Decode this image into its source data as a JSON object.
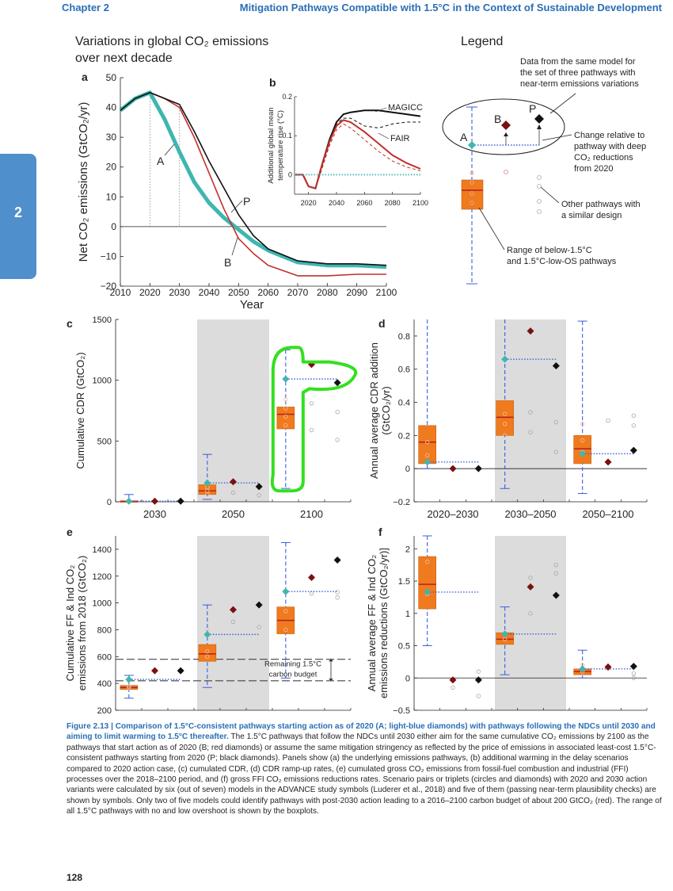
{
  "header": {
    "chapter": "Chapter 2",
    "title": "Mitigation Pathways Compatible with 1.5°C in the Context of Sustainable Development"
  },
  "side_tab": "2",
  "page_number": "128",
  "legend": {
    "title": "Legend",
    "note_same_model": [
      "Data from the same model for",
      "the set of three pathways with",
      "near-term emissions variations"
    ],
    "note_change": [
      "Change relative to",
      "pathway with deep",
      "CO₂ reductions",
      "from 2020"
    ],
    "note_other": [
      "Other pathways with",
      "a similar design"
    ],
    "note_range": [
      "Range of below-1.5°C",
      "and 1.5°C-low-OS pathways"
    ],
    "labels": {
      "A": "A",
      "B": "B",
      "P": "P"
    }
  },
  "chart_data": [
    {
      "id": "a",
      "panel_label": "a",
      "type": "line",
      "title": "Variations in global CO₂ emissions over next decade",
      "title_lines": [
        "Variations in global CO₂ emissions",
        "over next decade"
      ],
      "xlabel": "Year",
      "ylabel": "Net CO₂ emissions (GtCO₂/yr)",
      "xlim": [
        2010,
        2100
      ],
      "ylim": [
        -20,
        50
      ],
      "xticks": [
        2010,
        2020,
        2030,
        2040,
        2050,
        2060,
        2070,
        2080,
        2090,
        2100
      ],
      "yticks": [
        -20,
        -10,
        0,
        10,
        20,
        30,
        40,
        50
      ],
      "series": [
        {
          "name": "A",
          "color": "#3fb6b0",
          "x": [
            2010,
            2015,
            2020,
            2025,
            2030,
            2035,
            2040,
            2045,
            2050,
            2055,
            2060,
            2070,
            2080,
            2090,
            2100
          ],
          "y": [
            39,
            43,
            45,
            36,
            25,
            15,
            8,
            3,
            -1,
            -5,
            -8,
            -12,
            -13,
            -13,
            -13.5
          ]
        },
        {
          "name": "B",
          "color": "#c0302c",
          "x": [
            2010,
            2015,
            2020,
            2025,
            2030,
            2035,
            2040,
            2045,
            2050,
            2055,
            2060,
            2070,
            2080,
            2090,
            2100
          ],
          "y": [
            39,
            43,
            45,
            43,
            40,
            30,
            18,
            6,
            -4,
            -9,
            -13,
            -16.5,
            -16.5,
            -16,
            -16
          ]
        },
        {
          "name": "P",
          "color": "#111111",
          "x": [
            2010,
            2015,
            2020,
            2025,
            2030,
            2035,
            2040,
            2045,
            2050,
            2055,
            2060,
            2070,
            2080,
            2090,
            2100
          ],
          "y": [
            39,
            43,
            45,
            43,
            41,
            32,
            22,
            13,
            4,
            -3,
            -7.5,
            -11.5,
            -12.5,
            -12.5,
            -13
          ]
        }
      ],
      "labels": {
        "A": "A",
        "B": "B",
        "P": "P"
      }
    },
    {
      "id": "b",
      "panel_label": "b",
      "type": "line",
      "ylabel": [
        "Additional global mean",
        "temperature rise (°C)"
      ],
      "xlim": [
        2010,
        2100
      ],
      "ylim": [
        -0.05,
        0.2
      ],
      "xticks": [
        2020,
        2040,
        2060,
        2080,
        2100
      ],
      "yticks": [
        0,
        0.1,
        0.2
      ],
      "series": [
        {
          "name": "MAGICC",
          "color": "#111111",
          "dash": false,
          "x": [
            2010,
            2016,
            2020,
            2025,
            2030,
            2035,
            2040,
            2045,
            2050,
            2060,
            2070,
            2080,
            2090,
            2100
          ],
          "y": [
            0,
            0,
            -0.03,
            -0.035,
            0.03,
            0.09,
            0.135,
            0.155,
            0.16,
            0.165,
            0.165,
            0.16,
            0.155,
            0.15
          ]
        },
        {
          "name": "",
          "color": "#111111",
          "dash": true,
          "x": [
            2010,
            2016,
            2020,
            2025,
            2030,
            2035,
            2040,
            2045,
            2050,
            2060,
            2070,
            2080,
            2090,
            2100
          ],
          "y": [
            0,
            0,
            -0.03,
            -0.035,
            0.02,
            0.08,
            0.13,
            0.145,
            0.145,
            0.125,
            0.12,
            0.13,
            0.135,
            0.135
          ]
        },
        {
          "name": "FAIR",
          "color": "#c0302c",
          "dash": false,
          "x": [
            2010,
            2016,
            2020,
            2025,
            2030,
            2035,
            2040,
            2045,
            2050,
            2060,
            2070,
            2080,
            2090,
            2100
          ],
          "y": [
            0,
            0,
            -0.03,
            -0.035,
            0.03,
            0.085,
            0.125,
            0.14,
            0.135,
            0.11,
            0.08,
            0.05,
            0.03,
            0.015
          ]
        },
        {
          "name": "",
          "color": "#c0302c",
          "dash": true,
          "x": [
            2010,
            2016,
            2020,
            2025,
            2030,
            2035,
            2040,
            2045,
            2050,
            2060,
            2070,
            2080,
            2090,
            2100
          ],
          "y": [
            0,
            0,
            -0.03,
            -0.035,
            0.02,
            0.075,
            0.115,
            0.13,
            0.12,
            0.09,
            0.06,
            0.035,
            0.02,
            0.01
          ]
        },
        {
          "name": "",
          "color": "#3fb6b0",
          "dotted": true,
          "x": [
            2010,
            2100
          ],
          "y": [
            0,
            0
          ]
        }
      ],
      "labels": {
        "magicc": "MAGICC",
        "fair": "FAIR"
      }
    },
    {
      "id": "c",
      "panel_label": "c",
      "type": "box",
      "ylabel": "Cumulative CDR (GtCO₂)",
      "ylim": [
        0,
        1500
      ],
      "yticks": [
        0,
        500,
        1000,
        1500
      ],
      "groups": [
        {
          "label": "2030",
          "shaded": false,
          "box": {
            "q1": 2,
            "median": 5,
            "q3": 8
          },
          "whisker": [
            0,
            60
          ],
          "A": 5,
          "B": 5,
          "P": 5,
          "circles": [
            3,
            5,
            8
          ]
        },
        {
          "label": "2050",
          "shaded": true,
          "box": {
            "q1": 60,
            "median": 90,
            "q3": 140
          },
          "whisker": [
            20,
            390
          ],
          "A": 155,
          "B": 165,
          "P": 125,
          "circles": [
            60,
            90,
            120
          ],
          "grey": [
            55,
            75
          ]
        },
        {
          "label": "2100",
          "shaded": false,
          "box": {
            "q1": 600,
            "median": 720,
            "q3": 780
          },
          "whisker": [
            110,
            1250
          ],
          "A": 1010,
          "B": 1130,
          "P": 980,
          "circles": [
            630,
            700,
            770,
            840
          ],
          "grey": [
            510,
            590,
            740,
            810
          ],
          "highlight": true
        }
      ]
    },
    {
      "id": "d",
      "panel_label": "d",
      "type": "box",
      "ylabel": [
        "Annual average CDR addition",
        "(GtCO₂/yr)"
      ],
      "ylim": [
        -0.2,
        0.9
      ],
      "yticks": [
        -0.2,
        0,
        0.2,
        0.4,
        0.6,
        0.8
      ],
      "groups": [
        {
          "label": "2020–2030",
          "shaded": false,
          "box": {
            "q1": 0.03,
            "median": 0.16,
            "q3": 0.26
          },
          "whisker": [
            0,
            0.95
          ],
          "A": 0.04,
          "B": 0,
          "P": 0,
          "circles": [
            0.08,
            0.16
          ]
        },
        {
          "label": "2030–2050",
          "shaded": true,
          "box": {
            "q1": 0.2,
            "median": 0.31,
            "q3": 0.41
          },
          "whisker": [
            -0.12,
            0.95
          ],
          "A": 0.66,
          "B": 0.83,
          "P": 0.62,
          "circles": [
            0.2,
            0.27,
            0.33
          ],
          "grey": [
            0.1,
            0.22,
            0.28,
            0.34
          ]
        },
        {
          "label": "2050–2100",
          "shaded": false,
          "box": {
            "q1": 0.03,
            "median": 0.12,
            "q3": 0.2
          },
          "whisker": [
            -0.15,
            0.89
          ],
          "A": 0.09,
          "B": 0.04,
          "P": 0.11,
          "circles": [
            0.1,
            0.17,
            0.27
          ],
          "grey": [
            0.26,
            0.29,
            0.32
          ]
        }
      ]
    },
    {
      "id": "e",
      "panel_label": "e",
      "type": "box",
      "ylabel": [
        "Cumulative FF & Ind CO₂",
        "emissions from 2018 (GtCO₂)"
      ],
      "ylim": [
        200,
        1500
      ],
      "yticks": [
        200,
        400,
        600,
        800,
        1000,
        1200,
        1400
      ],
      "budget_lines": [
        580,
        420
      ],
      "budget_label": [
        "Remaining 1.5°C",
        "carbon budget"
      ],
      "groups": [
        {
          "label": "",
          "shaded": false,
          "box": {
            "q1": 355,
            "median": 370,
            "q3": 385
          },
          "whisker": [
            290,
            460
          ],
          "A": 430,
          "B": 495,
          "P": 495,
          "circles": [
            370,
            380,
            420
          ]
        },
        {
          "label": "",
          "shaded": true,
          "box": {
            "q1": 565,
            "median": 620,
            "q3": 690
          },
          "whisker": [
            370,
            985
          ],
          "A": 765,
          "B": 950,
          "P": 985,
          "circles": [
            600,
            640,
            800
          ],
          "grey": [
            820,
            860
          ]
        },
        {
          "label": "",
          "shaded": false,
          "box": {
            "q1": 770,
            "median": 870,
            "q3": 970
          },
          "whisker": [
            440,
            1450
          ],
          "A": 1085,
          "B": 1190,
          "P": 1320,
          "circles": [
            800,
            940,
            1080
          ],
          "grey": [
            1040,
            1070,
            1080
          ]
        }
      ]
    },
    {
      "id": "f",
      "panel_label": "f",
      "type": "box",
      "ylabel": [
        "Annual average FF & Ind CO₂",
        "emissions reductions (GtCO₂/yr)]"
      ],
      "ylim": [
        -0.5,
        2.2
      ],
      "yticks": [
        -0.5,
        0,
        0.5,
        1,
        1.5,
        2
      ],
      "groups": [
        {
          "label": "",
          "shaded": false,
          "box": {
            "q1": 1.07,
            "median": 1.45,
            "q3": 1.88
          },
          "whisker": [
            0.5,
            2.2
          ],
          "A": 1.33,
          "B": -0.03,
          "P": -0.03,
          "circles": [
            1.3,
            1.8
          ],
          "grey": [
            0.1,
            -0.15,
            -0.28
          ]
        },
        {
          "label": "",
          "shaded": true,
          "box": {
            "q1": 0.52,
            "median": 0.6,
            "q3": 0.7
          },
          "whisker": [
            0.05,
            1.1
          ],
          "A": 0.68,
          "B": 1.41,
          "P": 1.28,
          "circles": [
            0.6,
            0.7
          ],
          "grey": [
            1.75,
            1.55,
            1.62,
            1.0
          ]
        },
        {
          "label": "",
          "shaded": false,
          "box": {
            "q1": 0.05,
            "median": 0.1,
            "q3": 0.14
          },
          "whisker": [
            0,
            0.43
          ],
          "A": 0.14,
          "B": 0.17,
          "P": 0.18,
          "circles": [
            0.1,
            0.2
          ],
          "grey": [
            0.07,
            0.15,
            0.0
          ]
        }
      ]
    }
  ],
  "caption": {
    "title": "Figure 2.13 | Comparison of 1.5°C-consistent pathways starting action as of 2020 (A; light-blue diamonds) with pathways following the NDCs until 2030 and aiming to limit warming to 1.5°C thereafter.",
    "body": " The 1.5°C pathways that follow the NDCs until 2030 either aim for the same cumulative CO₂ emissions by 2100 as the pathways that start action as of 2020 (B; red diamonds) or assume the same mitigation stringency as reflected by the price of emissions in associated least-cost 1.5°C-consistent pathways starting from 2020 (P; black diamonds). Panels show (a) the underlying emissions pathways, (b) additional warming in the delay scenarios compared to 2020 action case, (c) cumulated CDR, (d) CDR ramp-up rates, (e) cumulated gross CO₂ emissions from fossil-fuel combustion and industrial (FFI) processes over the 2018–2100 period, and (f) gross FFI CO₂ emissions reductions rates. Scenario pairs or triplets (circles and diamonds) with 2020 and 2030 action variants were calculated by six (out of seven) models in the ADVANCE study symbols (Luderer et al., 2018) and five of them (passing near-term plausibility checks) are shown by symbols. Only two of five models could identify pathways with post-2030 action leading to a 2016–2100 carbon budget of about 200 GtCO₂ (red). The range of all 1.5°C pathways with no and low overshoot is shown by the boxplots."
  },
  "colors": {
    "header": "#2a6fb5",
    "tab": "#4f8fcb",
    "A": "#3fb6b0",
    "B": "#7a1010",
    "P": "#111111",
    "box": "#f07a1e",
    "median": "#b52020",
    "whisker": "#3b5fd9",
    "shade": "#dcdcdc",
    "highlight": "#33e01f"
  }
}
